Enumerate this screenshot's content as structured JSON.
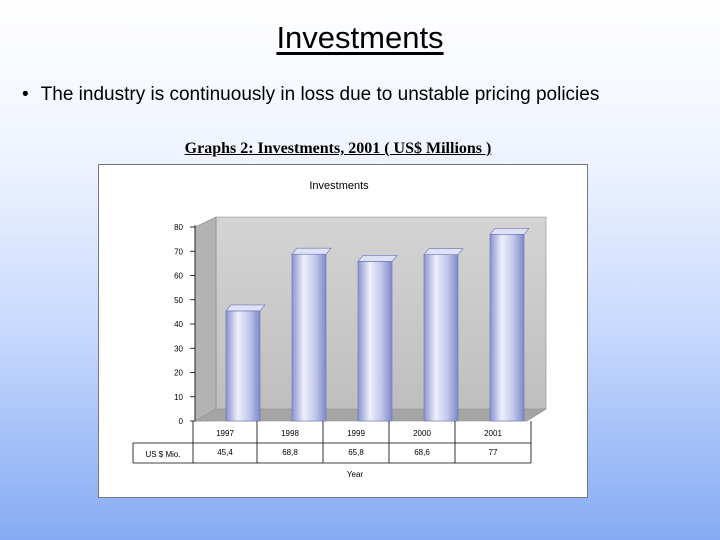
{
  "slide": {
    "title": "Investments",
    "bullet_symbol": "•",
    "bullet": "The industry is continuously in loss due to unstable pricing policies",
    "caption": "Graphs 2: Investments, 2001  ( US$ Millions )"
  },
  "chart_data": {
    "type": "bar",
    "title": "Investments",
    "xlabel": "Year",
    "ylabel": "",
    "categories": [
      "1997",
      "1998",
      "1999",
      "2000",
      "2001"
    ],
    "series": [
      {
        "name": "US $ Mio.",
        "values": [
          45.4,
          68.8,
          65.8,
          68.6,
          77
        ]
      }
    ],
    "value_labels": [
      "45,4",
      "68,8",
      "65,8",
      "68,6",
      "77"
    ],
    "ylim": [
      0,
      80
    ],
    "y_ticks": [
      0,
      10,
      20,
      30,
      40,
      50,
      60,
      70,
      80
    ],
    "grid": false,
    "data_table": true,
    "colors": {
      "bar": "#b8bfe6",
      "bar_light": "#eef0fb",
      "bar_dark": "#7f89c8",
      "wall": "#c9c9c9",
      "floor": "#a8a8a8"
    }
  }
}
